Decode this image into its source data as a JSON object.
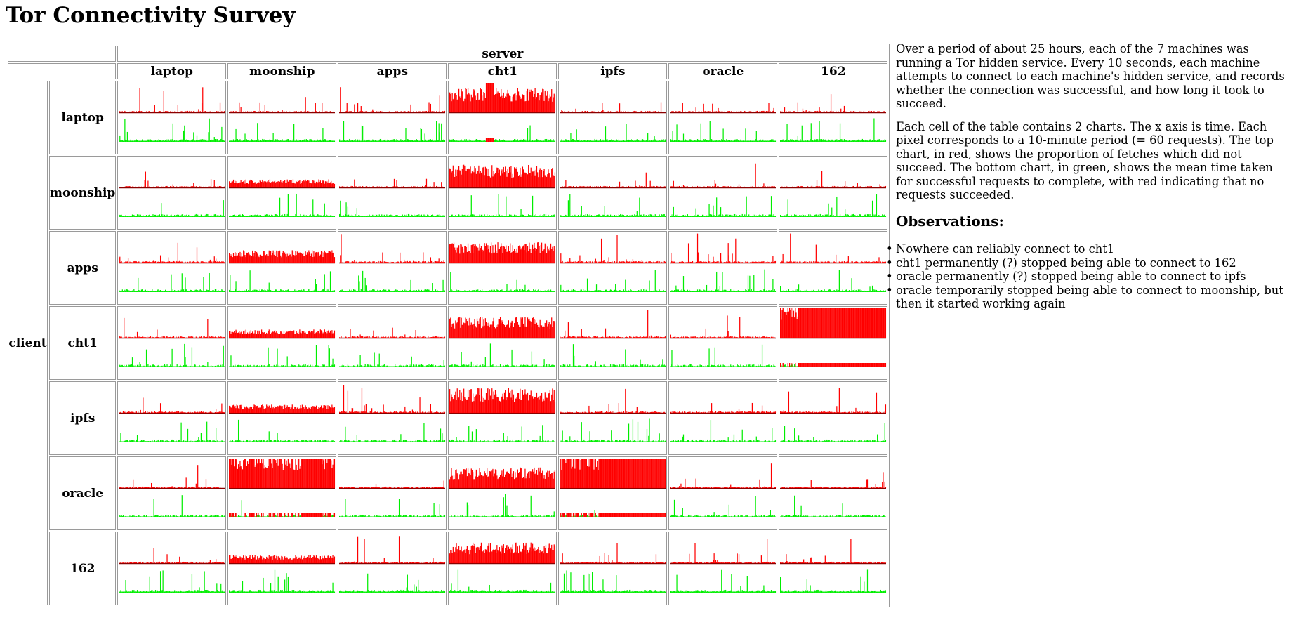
{
  "page": {
    "title": "Tor Connectivity Survey"
  },
  "table": {
    "server_label": "server",
    "client_label": "client",
    "machines": [
      "laptop",
      "moonship",
      "apps",
      "cht1",
      "ipfs",
      "oracle",
      "162"
    ]
  },
  "text": {
    "para1": "Over a period of about 25 hours, each of the 7 machines was running a Tor hidden service. Every 10 seconds, each machine attempts to connect to each machine's hidden service, and records whether the connection was successful, and how long it took to succeed.",
    "para2": "Each cell of the table contains 2 charts. The x axis is time. Each pixel corresponds to a 10-minute period (= 60 requests). The top chart, in red, shows the proportion of fetches which did not succeed. The bottom chart, in green, shows the mean time taken for successful requests to complete, with red indicating that no requests succeeded.",
    "observations_heading": "Observations:",
    "observations": [
      "Nowhere can reliably connect to cht1",
      "cht1 permanently (?) stopped being able to connect to 162",
      "oracle permanently (?) stopped being able to connect to ipfs",
      "oracle temporarily stopped being able to connect to moonship, but then it started working again"
    ]
  },
  "colors": {
    "failure": "#ff0000",
    "latency": "#00ee00",
    "baseline": "#8b0000",
    "border": "#9a9a9a"
  },
  "chart_data": {
    "type": "heatmap",
    "description_axes": {
      "rows": "client",
      "columns": "server"
    },
    "cells": [
      {
        "client": "laptop",
        "server": "cht1",
        "failure_level": 0.6,
        "notable": "high failure throughout, spike to 1.0 near 0.35-0.42 with no successes"
      },
      {
        "client": "moonship",
        "server": "cht1",
        "failure_level": 0.55
      },
      {
        "client": "apps",
        "server": "cht1",
        "failure_level": 0.5
      },
      {
        "client": "cht1",
        "server": "cht1",
        "failure_level": 0.5
      },
      {
        "client": "ipfs",
        "server": "cht1",
        "failure_level": 0.6
      },
      {
        "client": "oracle",
        "server": "cht1",
        "failure_level": 0.5
      },
      {
        "client": "162",
        "server": "cht1",
        "failure_level": 0.5
      },
      {
        "client": "cht1",
        "server": "162",
        "failure_level": 1.0,
        "notable": "permanent failure from ~0.18 of period onward"
      },
      {
        "client": "oracle",
        "server": "ipfs",
        "failure_level": 1.0,
        "notable": "permanent failure from ~0.35 of period onward"
      },
      {
        "client": "oracle",
        "server": "moonship",
        "failure_level": 1.0,
        "notable": "temporary failure ~0.68-0.83 of period"
      },
      {
        "client": "apps",
        "server": "moonship",
        "failure_level": 0.3
      },
      {
        "client": "moonship",
        "server": "moonship",
        "failure_level": 0.2
      },
      {
        "client": "cht1",
        "server": "moonship",
        "failure_level": 0.2
      },
      {
        "client": "ipfs",
        "server": "moonship",
        "failure_level": 0.2
      },
      {
        "client": "162",
        "server": "moonship",
        "failure_level": 0.2
      }
    ]
  }
}
